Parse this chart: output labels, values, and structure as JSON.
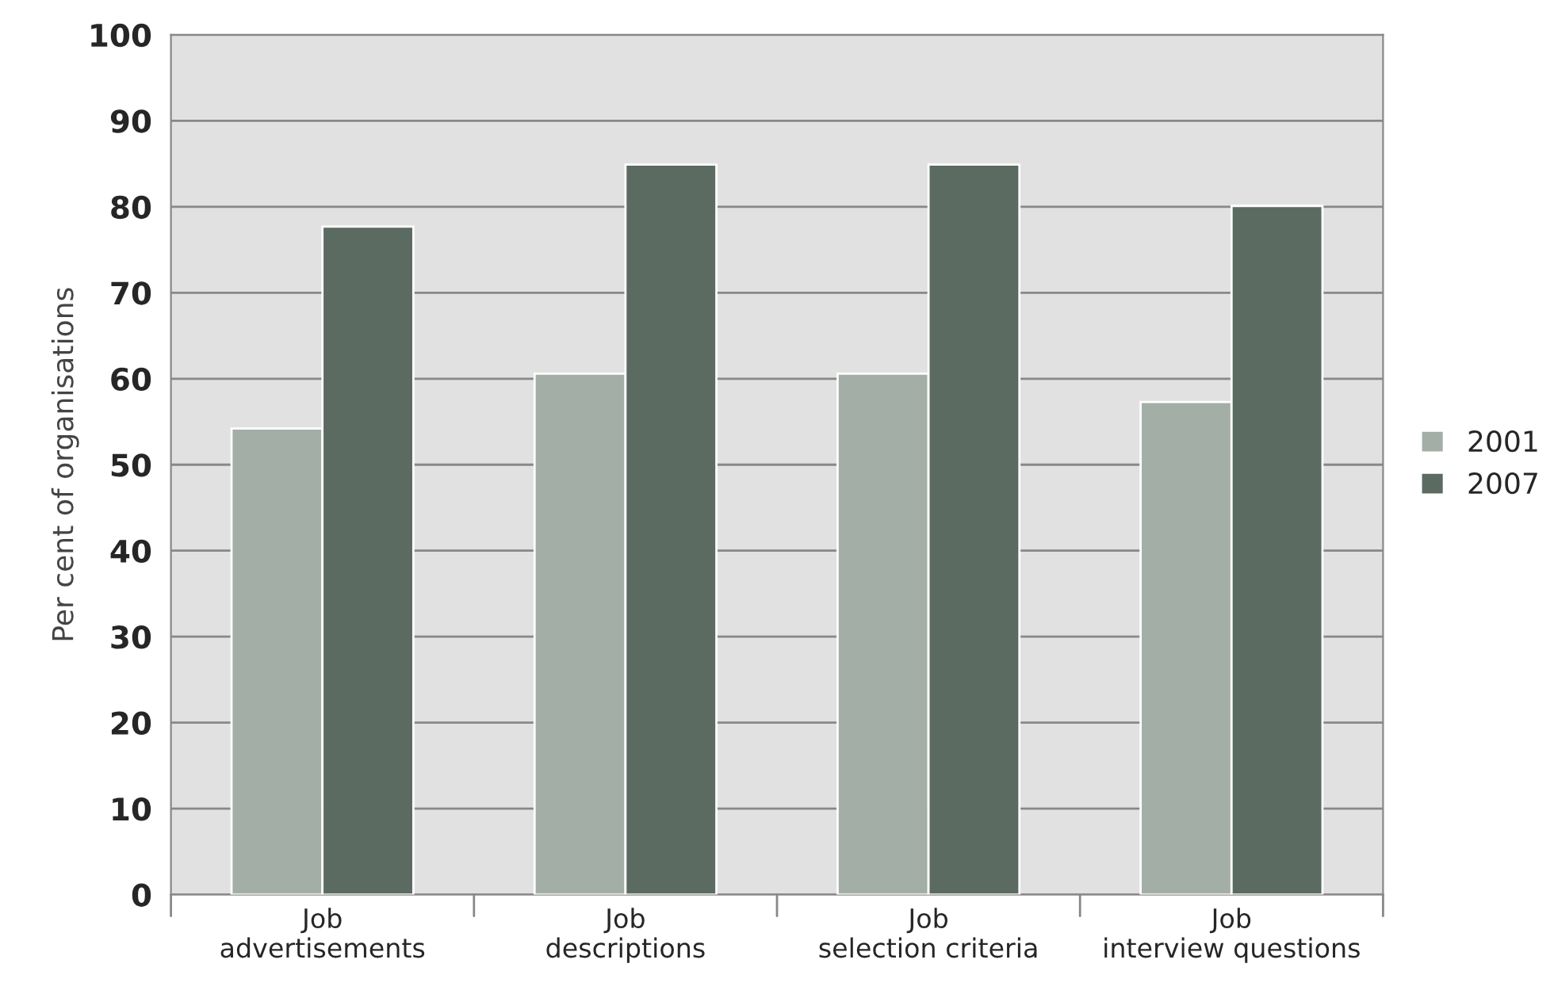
{
  "chart_data": {
    "type": "bar",
    "ylabel": "Per cent of organisations",
    "categories": [
      "Job\nadvertisements",
      "Job\ndescriptions",
      "Job\nselection criteria",
      "Job\ninterview questions"
    ],
    "series": [
      {
        "name": "2001",
        "color": "#a3aea7",
        "values": [
          54.2,
          60.6,
          60.6,
          57.3
        ]
      },
      {
        "name": "2007",
        "color": "#5b6b61",
        "values": [
          77.7,
          84.9,
          84.9,
          80.1
        ]
      }
    ],
    "ylim": [
      0,
      100
    ],
    "yticks": [
      0,
      10,
      20,
      30,
      40,
      50,
      60,
      70,
      80,
      90,
      100
    ],
    "grid": "y",
    "legend": "right"
  }
}
